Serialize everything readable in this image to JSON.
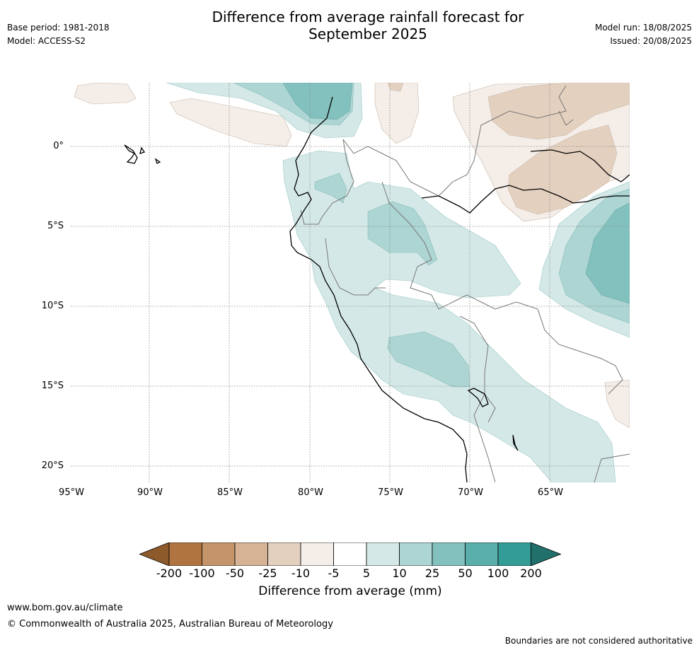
{
  "title_line1": "Difference from average rainfall forecast for",
  "title_line2": "September 2025",
  "base_period": "Base period: 1981-2018",
  "model": "Model: ACCESS-S2",
  "model_run": "Model run: 18/08/2025",
  "issued": "Issued: 20/08/2025",
  "lat_labels": [
    "0°",
    "5°S",
    "10°S",
    "15°S",
    "20°S"
  ],
  "lon_labels": [
    "95°W",
    "90°W",
    "85°W",
    "80°W",
    "75°W",
    "70°W",
    "65°W"
  ],
  "colorbar": {
    "title": "Difference from average (mm)",
    "ticks": [
      "-200",
      "-100",
      "-50",
      "-25",
      "-10",
      "-5",
      "5",
      "10",
      "25",
      "50",
      "100",
      "200"
    ],
    "colors": [
      "#8d5a2b",
      "#b07440",
      "#c4956a",
      "#d5b394",
      "#e4d0bf",
      "#f4ede8",
      "#ffffff",
      "#d4e9e7",
      "#acd5d3",
      "#83c1be",
      "#5aafab",
      "#339c97",
      "#21706c"
    ]
  },
  "footer": {
    "url": "www.bom.gov.au/climate",
    "copyright": "© Commonwealth of Australia 2025, Australian Bureau of Meteorology",
    "disclaimer": "Boundaries are not considered authoritative"
  }
}
